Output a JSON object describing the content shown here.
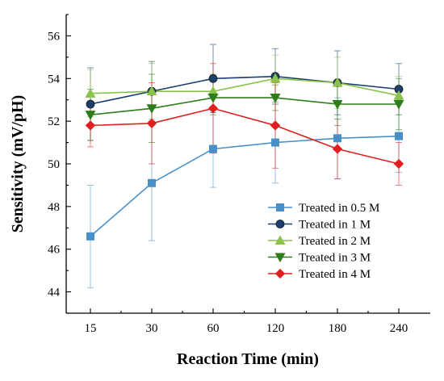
{
  "chart_data": {
    "type": "line",
    "title": "",
    "xlabel": "Reaction Time (min)",
    "ylabel": "Sensitivity (mV/pH)",
    "categories": [
      "15",
      "30",
      "60",
      "120",
      "180",
      "240"
    ],
    "ylim": [
      43,
      57
    ],
    "yticks": [
      44,
      46,
      48,
      50,
      52,
      54,
      56
    ],
    "grid": false,
    "legend_position": "bottom-right",
    "series": [
      {
        "name": "Treated in 0.5 M",
        "color": "#4a90c8",
        "marker": "square",
        "values": [
          46.6,
          49.1,
          50.7,
          51.0,
          51.2,
          51.3
        ],
        "errors": [
          2.4,
          2.7,
          1.8,
          1.9,
          1.9,
          1.7
        ]
      },
      {
        "name": "Treated in 1 M",
        "color": "#1c3f6e",
        "marker": "circle",
        "values": [
          52.8,
          53.4,
          54.0,
          54.1,
          53.8,
          53.5
        ],
        "errors": [
          1.7,
          1.4,
          1.6,
          1.3,
          1.5,
          1.2
        ]
      },
      {
        "name": "Treated in 2 M",
        "color": "#8bc34a",
        "marker": "triangle-up",
        "values": [
          53.3,
          53.4,
          53.4,
          54.0,
          53.8,
          53.2
        ],
        "errors": [
          1.1,
          1.3,
          0.8,
          1.1,
          1.2,
          0.9
        ]
      },
      {
        "name": "Treated in 3 M",
        "color": "#2e7d1a",
        "marker": "triangle-down",
        "values": [
          52.3,
          52.6,
          53.1,
          53.1,
          52.8,
          52.8
        ],
        "errors": [
          1.2,
          1.6,
          0.8,
          0.6,
          1.0,
          1.2
        ]
      },
      {
        "name": "Treated in 4 M",
        "color": "#e02020",
        "marker": "diamond",
        "values": [
          51.8,
          51.9,
          52.6,
          51.8,
          50.7,
          50.0
        ],
        "errors": [
          1.0,
          1.9,
          2.1,
          2.0,
          1.4,
          1.0
        ]
      }
    ]
  }
}
